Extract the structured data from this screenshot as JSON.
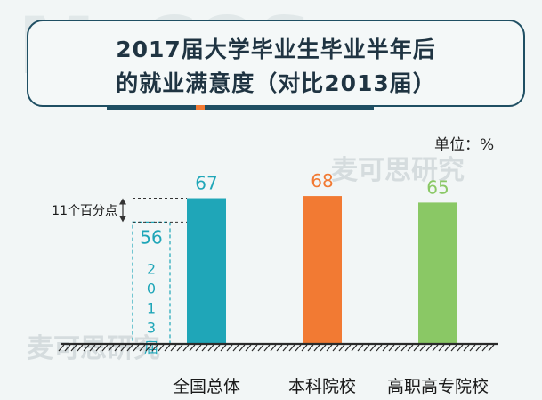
{
  "title_lines": [
    "2017届大学毕业生毕业半年后",
    "的就业满意度（对比2013届）"
  ],
  "unit_label": "单位：%",
  "watermark": "麦可思研究",
  "colors": {
    "national": "#1fa6b8",
    "undergrad": "#f27a33",
    "vocational": "#8ac865",
    "ground": "#2a2a2a"
  },
  "chart_data": {
    "type": "bar",
    "title": "2017届大学毕业生毕业半年后的就业满意度（对比2013届）",
    "unit": "%",
    "categories": [
      "全国总体",
      "本科院校",
      "高职高专院校"
    ],
    "values": [
      67,
      68,
      65
    ],
    "comparison": {
      "category": "全国总体",
      "label": "2013届",
      "value": 56,
      "difference_label": "11个百分点"
    },
    "ylim": [
      0,
      70
    ],
    "grid": false,
    "legend": "none"
  }
}
